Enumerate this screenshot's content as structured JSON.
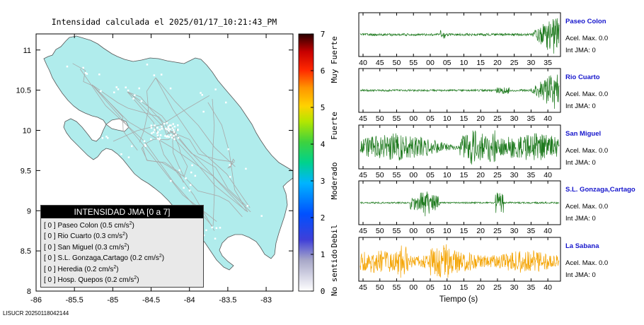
{
  "map": {
    "title": "Intensidad calculada el 2025/01/17_10:21:43_PM",
    "x_ticks": [
      "-86",
      "-85.5",
      "-85",
      "-84.5",
      "-84",
      "-83.5",
      "-83"
    ],
    "y_ticks": [
      "8",
      "8.5",
      "9",
      "9.5",
      "10",
      "10.5",
      "11"
    ],
    "xlim": [
      -86,
      -82.65
    ],
    "ylim": [
      8,
      11.2
    ],
    "land_color": "#b0ecec",
    "road_color": "#a8a8a8",
    "footer": "LISUCR 20250118042144"
  },
  "legend": {
    "title": "INTENSIDAD JMA [0 a 7]",
    "unit": "cm/s",
    "unit_exp": "2",
    "rows": [
      {
        "bracket": "[ 0 ]",
        "station": "Paseo Colon",
        "value": "(0.5"
      },
      {
        "bracket": "[ 0 ]",
        "station": "Rio Cuarto",
        "value": "(0.3"
      },
      {
        "bracket": "[ 0 ]",
        "station": "San Miguel",
        "value": "(0.3"
      },
      {
        "bracket": "[ 0 ]",
        "station": "S.L. Gonzaga,Cartago",
        "value": "(0.2"
      },
      {
        "bracket": "[ 0 ]",
        "station": "Heredia",
        "value": "(0.2"
      },
      {
        "bracket": "[ 0 ]",
        "station": "Hosp. Quepos",
        "value": "(0.2"
      }
    ]
  },
  "colorbar": {
    "ticks": [
      "0",
      "1",
      "2",
      "3",
      "4",
      "5",
      "6",
      "7"
    ],
    "categories": [
      "No sentido",
      "Debil",
      "Moderado",
      "Fuerte",
      "Muy Fuerte"
    ],
    "range": [
      0,
      7
    ]
  },
  "waveforms": {
    "xlabel": "Tiempo (s)",
    "panels": [
      {
        "station": "Paseo Colon",
        "accel": "Acel. Max. 0.0",
        "jma": "Int JMA: 0",
        "color": "#1e7a1e",
        "name_color": "#1515cc",
        "ticks": [
          "40",
          "45",
          "50",
          "55",
          "00",
          "05",
          "10",
          "15",
          "20",
          "25",
          "30",
          "35"
        ],
        "tick_start": 40
      },
      {
        "station": "Rio Cuarto",
        "accel": "Acel. Max. 0.0",
        "jma": "Int JMA: 0",
        "color": "#1e7a1e",
        "name_color": "#1515cc",
        "ticks": [
          "45",
          "50",
          "55",
          "00",
          "05",
          "10",
          "15",
          "20",
          "25",
          "30",
          "35",
          "40"
        ],
        "tick_start": 45
      },
      {
        "station": "San Miguel",
        "accel": "Acel. Max. 0.0",
        "jma": "Int JMA: 0",
        "color": "#1e7a1e",
        "name_color": "#1515cc",
        "ticks": [
          "45",
          "50",
          "55",
          "00",
          "05",
          "10",
          "15",
          "20",
          "25",
          "30",
          "35",
          "40"
        ],
        "tick_start": 45
      },
      {
        "station": "S.L. Gonzaga,Cartago",
        "accel": "Acel. Max. 0.0",
        "jma": "Int JMA: 0",
        "color": "#1e7a1e",
        "name_color": "#1515cc",
        "ticks": [
          "45",
          "50",
          "55",
          "00",
          "05",
          "10",
          "15",
          "20",
          "25",
          "30",
          "35",
          "40"
        ],
        "tick_start": 45
      },
      {
        "station": "La Sabana",
        "accel": "Acel. Max. 0.0",
        "jma": "Int JMA: 0",
        "color": "#f4a300",
        "name_color": "#1515cc",
        "ticks": [
          "45",
          "50",
          "55",
          "00",
          "05",
          "10",
          "15",
          "20",
          "25",
          "30",
          "35",
          "40"
        ],
        "tick_start": 45
      }
    ]
  },
  "chart_data": [
    {
      "type": "heatmap",
      "title": "Intensidad calculada el 2025/01/17_10:21:43_PM",
      "xlabel": "",
      "ylabel": "",
      "xlim": [
        -86,
        -82.65
      ],
      "ylim": [
        8,
        11.2
      ],
      "colorbar_range": [
        0,
        7
      ],
      "legend_placement": "bottom-left",
      "stations": [
        {
          "name": "Paseo Colon",
          "intensity": 0,
          "pga_cm_s2": 0.5
        },
        {
          "name": "Rio Cuarto",
          "intensity": 0,
          "pga_cm_s2": 0.3
        },
        {
          "name": "San Miguel",
          "intensity": 0,
          "pga_cm_s2": 0.3
        },
        {
          "name": "S.L. Gonzaga,Cartago",
          "intensity": 0,
          "pga_cm_s2": 0.2
        },
        {
          "name": "Heredia",
          "intensity": 0,
          "pga_cm_s2": 0.2
        },
        {
          "name": "Hosp. Quepos",
          "intensity": 0,
          "pga_cm_s2": 0.2
        }
      ]
    },
    {
      "type": "line",
      "xlabel": "Tiempo (s)",
      "series": [
        {
          "name": "Paseo Colon",
          "acel_max": 0.0,
          "int_jma": 0
        },
        {
          "name": "Rio Cuarto",
          "acel_max": 0.0,
          "int_jma": 0
        },
        {
          "name": "San Miguel",
          "acel_max": 0.0,
          "int_jma": 0
        },
        {
          "name": "S.L. Gonzaga,Cartago",
          "acel_max": 0.0,
          "int_jma": 0
        },
        {
          "name": "La Sabana",
          "acel_max": 0.0,
          "int_jma": 0
        }
      ]
    }
  ]
}
